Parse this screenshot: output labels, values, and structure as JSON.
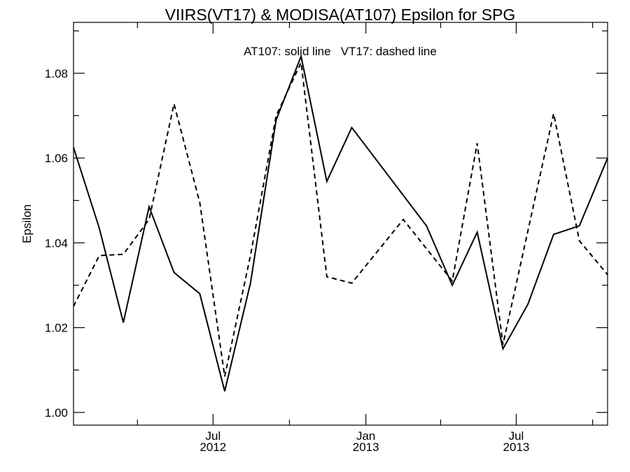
{
  "chart_data": {
    "type": "line",
    "title": "VIIRS(VT17) & MODISA(AT107)  Epsilon for SPG",
    "ylabel": "Epsilon",
    "xlabel": "",
    "annotation": "AT107: solid line   VT17: dashed line",
    "ylim": [
      0.997,
      1.092
    ],
    "xlim": [
      "2012-01-15",
      "2013-10-19"
    ],
    "y_ticks": [
      "1.00",
      "1.02",
      "1.04",
      "1.06",
      "1.08"
    ],
    "x_ticks": [
      {
        "month": "Jul",
        "year": "2012"
      },
      {
        "month": "Jan",
        "year": "2013"
      },
      {
        "month": "Jul",
        "year": "2013"
      }
    ],
    "grid": false,
    "series": [
      {
        "name": "AT107",
        "style": "solid",
        "color": "#000000",
        "points": [
          [
            "2012-01-15",
            1.0625
          ],
          [
            "2012-02-15",
            1.0435
          ],
          [
            "2012-03-15",
            1.0212
          ],
          [
            "2012-04-15",
            1.0485
          ],
          [
            "2012-05-15",
            1.033
          ],
          [
            "2012-06-15",
            1.028
          ],
          [
            "2012-07-15",
            1.005
          ],
          [
            "2012-08-15",
            1.0305
          ],
          [
            "2012-09-15",
            1.069
          ],
          [
            "2012-10-15",
            1.084
          ],
          [
            "2012-11-15",
            1.0545
          ],
          [
            "2012-12-15",
            1.0672
          ],
          [
            "2013-03-15",
            1.044
          ],
          [
            "2013-04-15",
            1.03
          ],
          [
            "2013-05-15",
            1.0425
          ],
          [
            "2013-06-15",
            1.015
          ],
          [
            "2013-07-15",
            1.0255
          ],
          [
            "2013-08-15",
            1.042
          ],
          [
            "2013-09-15",
            1.044
          ],
          [
            "2013-10-19",
            1.06
          ]
        ]
      },
      {
        "name": "VT17",
        "style": "dashed",
        "color": "#000000",
        "points": [
          [
            "2012-01-15",
            1.025
          ],
          [
            "2012-02-15",
            1.037
          ],
          [
            "2012-03-15",
            1.0373
          ],
          [
            "2012-04-15",
            1.0455
          ],
          [
            "2012-05-15",
            1.0728
          ],
          [
            "2012-06-15",
            1.0495
          ],
          [
            "2012-07-15",
            1.0085
          ],
          [
            "2012-08-15",
            1.037
          ],
          [
            "2012-09-15",
            1.07
          ],
          [
            "2012-10-15",
            1.0825
          ],
          [
            "2012-11-15",
            1.032
          ],
          [
            "2012-12-15",
            1.0305
          ],
          [
            "2013-02-15",
            1.0455
          ],
          [
            "2013-04-15",
            1.031
          ],
          [
            "2013-05-15",
            1.0635
          ],
          [
            "2013-06-15",
            1.016
          ],
          [
            "2013-08-15",
            1.0705
          ],
          [
            "2013-09-15",
            1.0405
          ],
          [
            "2013-10-19",
            1.0325
          ]
        ]
      }
    ]
  }
}
